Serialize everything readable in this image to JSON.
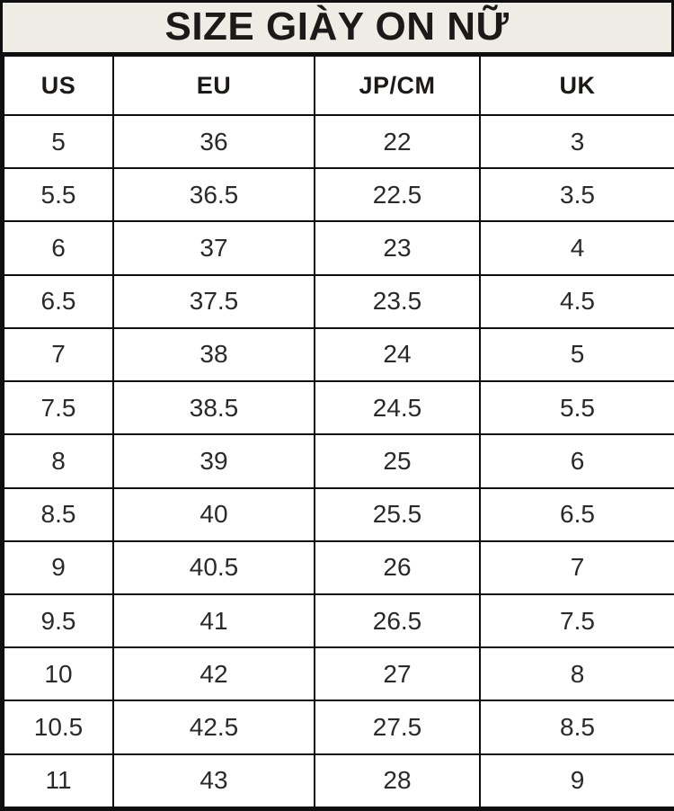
{
  "title": "SIZE GIÀY ON NỮ",
  "chart_data": {
    "type": "table",
    "title": "SIZE GIÀY ON NỮ",
    "columns": [
      "US",
      "EU",
      "JP/CM",
      "UK"
    ],
    "rows": [
      [
        "5",
        "36",
        "22",
        "3"
      ],
      [
        "5.5",
        "36.5",
        "22.5",
        "3.5"
      ],
      [
        "6",
        "37",
        "23",
        "4"
      ],
      [
        "6.5",
        "37.5",
        "23.5",
        "4.5"
      ],
      [
        "7",
        "38",
        "24",
        "5"
      ],
      [
        "7.5",
        "38.5",
        "24.5",
        "5.5"
      ],
      [
        "8",
        "39",
        "25",
        "6"
      ],
      [
        "8.5",
        "40",
        "25.5",
        "6.5"
      ],
      [
        "9",
        "40.5",
        "26",
        "7"
      ],
      [
        "9.5",
        "41",
        "26.5",
        "7.5"
      ],
      [
        "10",
        "42",
        "27",
        "8"
      ],
      [
        "10.5",
        "42.5",
        "27.5",
        "8.5"
      ],
      [
        "11",
        "43",
        "28",
        "9"
      ]
    ]
  },
  "colors": {
    "title_bar_background": "#efece6",
    "grid_line": "#0f0f0f",
    "cell_background": "#ffffff",
    "text": "#1b1a18"
  }
}
